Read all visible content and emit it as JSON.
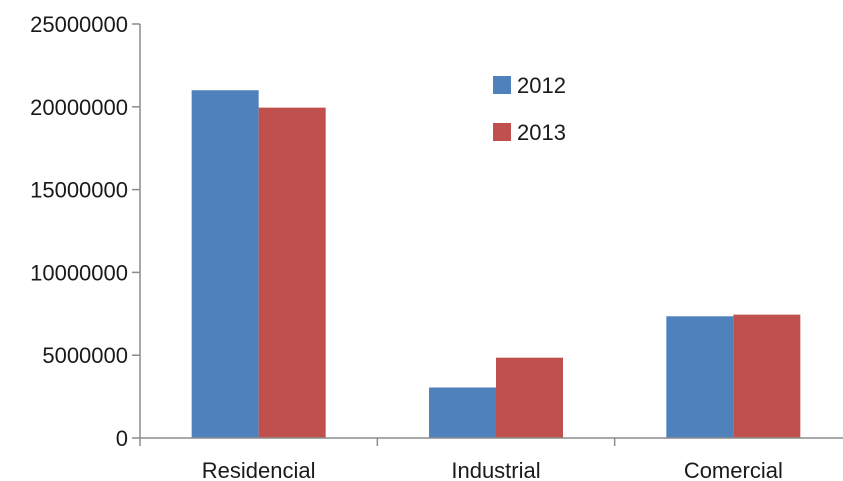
{
  "chart_data": {
    "type": "bar",
    "categories": [
      "Residencial",
      "Industrial",
      "Comercial"
    ],
    "series": [
      {
        "name": "2012",
        "values": [
          21000000,
          3050000,
          7350000
        ],
        "color": "#4f81bd"
      },
      {
        "name": "2013",
        "values": [
          19950000,
          4850000,
          7450000
        ],
        "color": "#c0504d"
      }
    ],
    "ylim": [
      0,
      25000000
    ],
    "yticks": [
      "0",
      "5000000",
      "10000000",
      "15000000",
      "20000000",
      "25000000"
    ],
    "grid": false,
    "legend_position": "top-right"
  }
}
